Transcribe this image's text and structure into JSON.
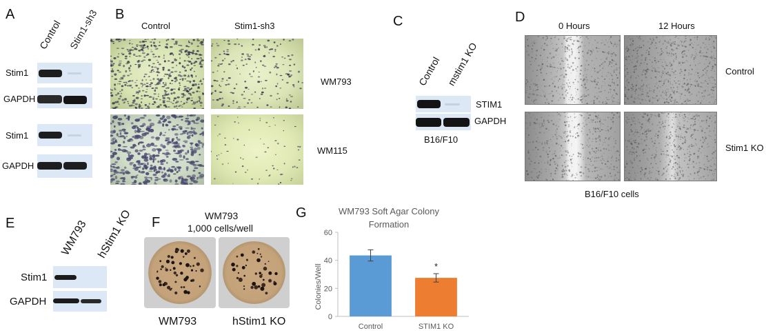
{
  "panels": {
    "a": {
      "letter": "A",
      "lane1": "Control",
      "lane2": "Stim1-sh3",
      "rows": [
        "Stim1",
        "GAPDH",
        "Stim1",
        "GAPDH"
      ]
    },
    "b": {
      "letter": "B",
      "col1": "Control",
      "col2": "Stim1-sh3",
      "row1": "WM793",
      "row2": "WM115"
    },
    "c": {
      "letter": "C",
      "lane1": "Control",
      "lane2": "mstim1 KO",
      "row1": "STIM1",
      "row2": "GAPDH",
      "caption": "B16/F10"
    },
    "d": {
      "letter": "D",
      "col1": "0 Hours",
      "col2": "12 Hours",
      "row1": "Control",
      "row2": "Stim1 KO",
      "caption": "B16/F10 cells"
    },
    "e": {
      "letter": "E",
      "lane1": "WM793",
      "lane2": "hStim1 KO",
      "row1": "Stim1",
      "row2": "GAPDH"
    },
    "f": {
      "letter": "F",
      "title_line1": "WM793",
      "title_line2": "1,000 cells/well",
      "label1": "WM793",
      "label2": "hStim1 KO"
    },
    "g": {
      "letter": "G"
    }
  },
  "chart_data": {
    "type": "bar",
    "title": "WM793 Soft Agar Colony Formation",
    "title_line1": "WM793 Soft Agar Colony",
    "title_line2": "Formation",
    "ylabel": "Colonies/Well",
    "xlabel": "",
    "categories": [
      "Control",
      "STIM1 KO"
    ],
    "values": [
      43.5,
      27.5
    ],
    "errors": [
      4,
      3
    ],
    "colors": [
      "#5b9bd5",
      "#ed7d31"
    ],
    "annotations": [
      "",
      "*"
    ],
    "ylim": [
      0,
      60
    ],
    "yticks": [
      0,
      20,
      40,
      60
    ],
    "grid": false
  }
}
